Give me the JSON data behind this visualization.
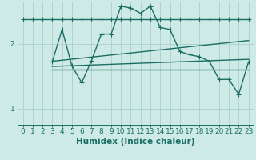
{
  "title": "",
  "xlabel": "Humidex (Indice chaleur)",
  "xlim": [
    -0.5,
    23.5
  ],
  "ylim": [
    0.75,
    2.65
  ],
  "yticks": [
    1,
    2
  ],
  "xticks": [
    0,
    1,
    2,
    3,
    4,
    5,
    6,
    7,
    8,
    9,
    10,
    11,
    12,
    13,
    14,
    15,
    16,
    17,
    18,
    19,
    20,
    21,
    22,
    23
  ],
  "background_color": "#ceeae6",
  "grid_color": "#aacfc9",
  "line_color": "#1a6e64",
  "series_flat": {
    "x": [
      0,
      1,
      2,
      3,
      4,
      5,
      6,
      7,
      8,
      9,
      10,
      11,
      12,
      13,
      14,
      15,
      16,
      17,
      18,
      19,
      20,
      21,
      22,
      23
    ],
    "y": [
      2.38,
      2.38,
      2.38,
      2.38,
      2.38,
      2.38,
      2.38,
      2.38,
      2.38,
      2.38,
      2.38,
      2.38,
      2.38,
      2.38,
      2.38,
      2.38,
      2.38,
      2.38,
      2.38,
      2.38,
      2.38,
      2.38,
      2.38,
      2.38
    ]
  },
  "series_main": {
    "x": [
      3,
      4,
      5,
      6,
      7,
      8,
      9,
      10,
      11,
      12,
      13,
      14,
      15,
      16,
      17,
      18,
      19,
      20,
      21,
      22,
      23
    ],
    "y": [
      1.72,
      2.22,
      1.66,
      1.4,
      1.74,
      2.15,
      2.15,
      2.58,
      2.55,
      2.47,
      2.58,
      2.25,
      2.22,
      1.88,
      1.83,
      1.8,
      1.73,
      1.45,
      1.45,
      1.22,
      1.72
    ]
  },
  "trend1": {
    "x": [
      3,
      23
    ],
    "y": [
      1.65,
      1.76
    ]
  },
  "trend2": {
    "x": [
      3,
      23
    ],
    "y": [
      1.73,
      2.05
    ]
  },
  "trend3": {
    "x": [
      3,
      23
    ],
    "y": [
      1.6,
      1.6
    ]
  },
  "marker": "+",
  "markersize": 4,
  "linewidth": 1.0,
  "label_fontsize": 7.5,
  "tick_fontsize": 6.5
}
